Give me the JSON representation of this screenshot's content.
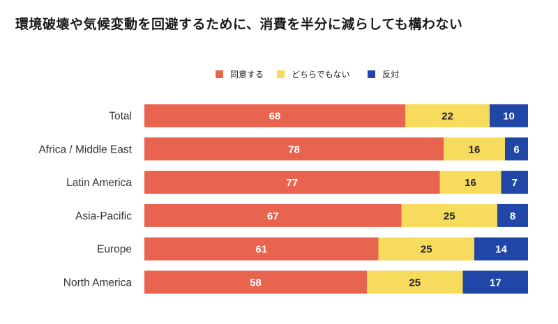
{
  "title": "環境破壊や気候変動を回避するために、消費を半分に減らしても構わない",
  "chart_data": {
    "type": "bar",
    "orientation": "horizontal",
    "stacked": true,
    "categories": [
      "Total",
      "Africa / Middle East",
      "Latin America",
      "Asia-Pacific",
      "Europe",
      "North America"
    ],
    "series": [
      {
        "name": "同意する",
        "color": "#E8644F",
        "label_color": "#ffffff",
        "values": [
          68,
          78,
          77,
          67,
          61,
          58
        ]
      },
      {
        "name": "どちらでもない",
        "color": "#F6DB5D",
        "label_color": "#222222",
        "values": [
          22,
          16,
          16,
          25,
          25,
          25
        ]
      },
      {
        "name": "反対",
        "color": "#2047A8",
        "label_color": "#ffffff",
        "values": [
          10,
          6,
          7,
          8,
          14,
          17
        ]
      }
    ],
    "xlim": [
      0,
      100
    ],
    "legend_position": "top",
    "grid": false
  }
}
